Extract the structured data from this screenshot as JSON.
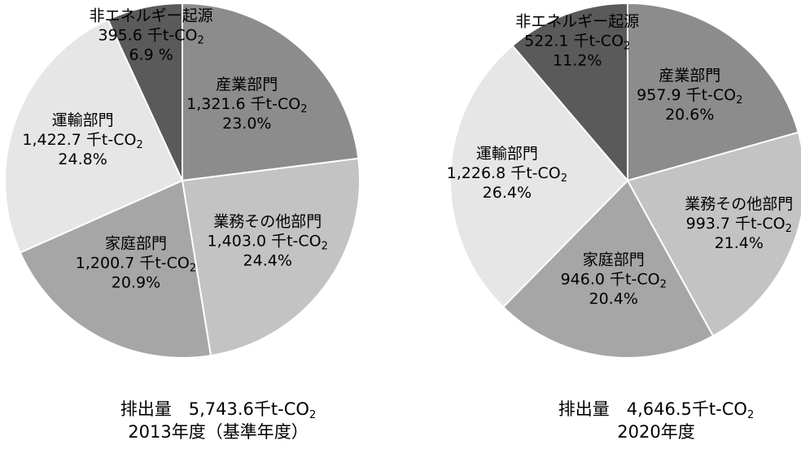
{
  "chart_data": [
    {
      "type": "pie",
      "total_label": "排出量　5,743.6千t-CO",
      "total_sub": "2",
      "year_label": "2013年度（基準年度）",
      "slices": [
        {
          "name": "産業部門",
          "value": 1321.6,
          "value_text": "1,321.6 千t-CO",
          "sub": "2",
          "percent_text": "23.0%",
          "color": "#8c8c8c"
        },
        {
          "name": "業務その他部門",
          "value": 1403.0,
          "value_text": "1,403.0 千t-CO",
          "sub": "2",
          "percent_text": "24.4%",
          "color": "#c3c3c3"
        },
        {
          "name": "家庭部門",
          "value": 1200.7,
          "value_text": "1,200.7 千t-CO",
          "sub": "2",
          "percent_text": "20.9%",
          "color": "#a6a6a6"
        },
        {
          "name": "運輸部門",
          "value": 1422.7,
          "value_text": "1,422.7 千t-CO",
          "sub": "2",
          "percent_text": "24.8%",
          "color": "#e6e6e6"
        },
        {
          "name": "非エネルギー起源",
          "value": 395.6,
          "value_text": "395.6 千t-CO",
          "sub": "2",
          "percent_text": "6.9 %",
          "color": "#5a5a5a"
        }
      ]
    },
    {
      "type": "pie",
      "total_label": "排出量　4,646.5千t-CO",
      "total_sub": "2",
      "year_label": "2020年度",
      "slices": [
        {
          "name": "産業部門",
          "value": 957.9,
          "value_text": "957.9 千t-CO",
          "sub": "2",
          "percent_text": "20.6%",
          "color": "#8c8c8c"
        },
        {
          "name": "業務その他部門",
          "value": 993.7,
          "value_text": "993.7 千t-CO",
          "sub": "2",
          "percent_text": "21.4%",
          "color": "#c3c3c3"
        },
        {
          "name": "家庭部門",
          "value": 946.0,
          "value_text": "946.0 千t-CO",
          "sub": "2",
          "percent_text": "20.4%",
          "color": "#a6a6a6"
        },
        {
          "name": "運輸部門",
          "value": 1226.8,
          "value_text": "1,226.8 千t-CO",
          "sub": "2",
          "percent_text": "26.4%",
          "color": "#e6e6e6"
        },
        {
          "name": "非エネルギー起源",
          "value": 522.1,
          "value_text": "522.1 千t-CO",
          "sub": "2",
          "percent_text": "11.2%",
          "color": "#5a5a5a"
        }
      ]
    }
  ]
}
